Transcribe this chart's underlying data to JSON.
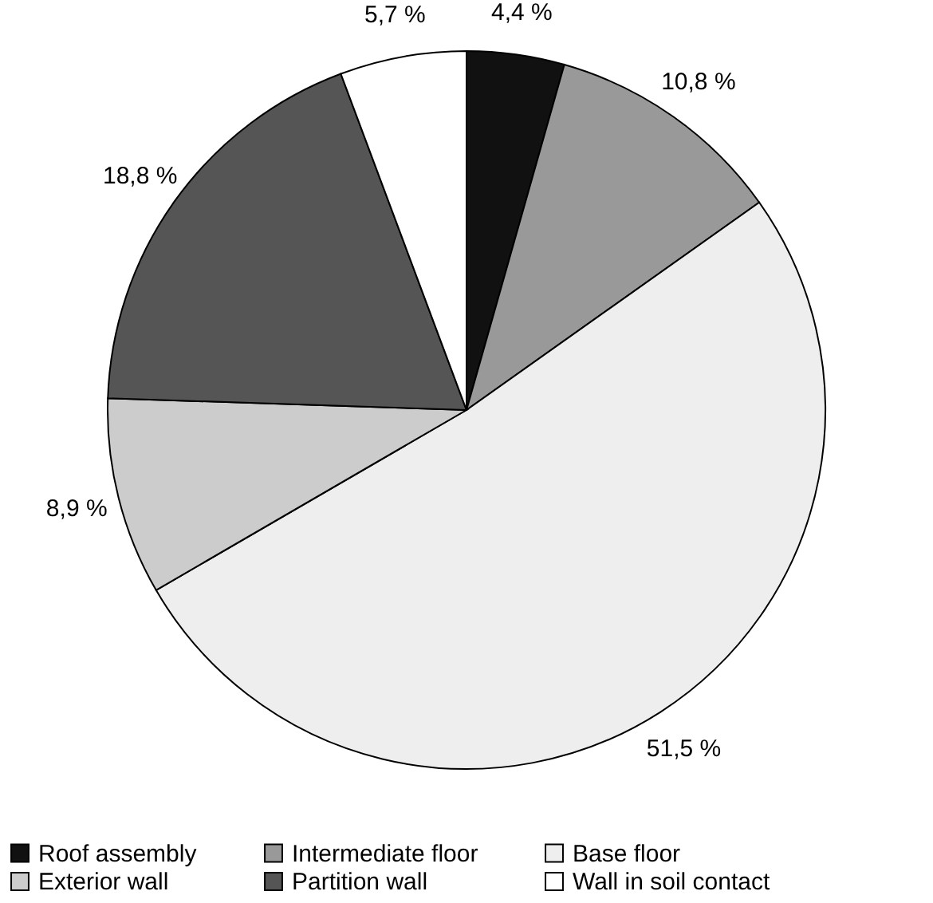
{
  "chart_data": {
    "type": "pie",
    "categories": [
      "Roof assembly",
      "Intermediate floor",
      "Base floor",
      "Exterior wall",
      "Partition wall",
      "Wall in soil contact"
    ],
    "values": [
      4.4,
      10.8,
      51.5,
      8.9,
      18.8,
      5.7
    ],
    "value_labels": [
      "4,4 %",
      "10,8 %",
      "51,5 %",
      "8,9 %",
      "18,8 %",
      "5,7 %"
    ],
    "colors": [
      "#111111",
      "#999999",
      "#eeeeee",
      "#cccccc",
      "#555555",
      "#ffffff"
    ],
    "legend": "bottom"
  }
}
